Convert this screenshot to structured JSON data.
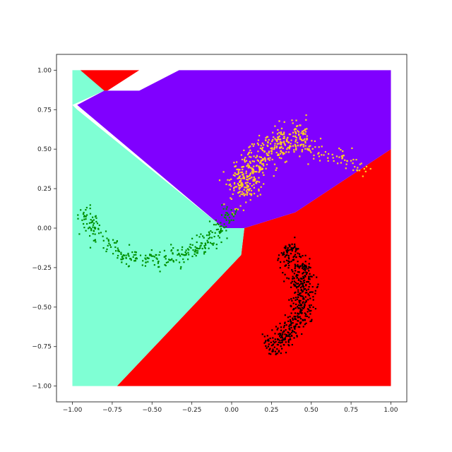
{
  "chart_data": {
    "type": "scatter",
    "title": "",
    "xlabel": "",
    "ylabel": "",
    "xlim": [
      -1.1,
      1.1
    ],
    "ylim": [
      -1.1,
      1.1
    ],
    "grid": false,
    "xticks": [
      -1.0,
      -0.75,
      -0.5,
      -0.25,
      0.0,
      0.25,
      0.5,
      0.75,
      1.0
    ],
    "yticks": [
      -1.0,
      -0.75,
      -0.5,
      -0.25,
      0.0,
      0.25,
      0.5,
      0.75,
      1.0
    ],
    "xtick_labels": [
      "−1.00",
      "−0.75",
      "−0.50",
      "−0.25",
      "0.00",
      "0.25",
      "0.50",
      "0.75",
      "1.00"
    ],
    "ytick_labels": [
      "−1.00",
      "−0.75",
      "−0.50",
      "−0.25",
      "0.00",
      "0.25",
      "0.50",
      "0.75",
      "1.00"
    ],
    "regions": [
      {
        "color": "#ff0000",
        "polygon": [
          [
            -0.95,
            1.0
          ],
          [
            -0.58,
            1.0
          ],
          [
            -0.78,
            0.87
          ],
          [
            -0.86,
            0.87
          ]
        ]
      },
      {
        "color": "#ff0000",
        "polygon": [
          [
            0.08,
            0.0
          ],
          [
            0.4,
            0.1
          ],
          [
            1.0,
            0.5
          ],
          [
            1.0,
            -1.0
          ],
          [
            -0.72,
            -1.0
          ],
          [
            0.06,
            -0.17
          ]
        ]
      },
      {
        "color": "#7fffd4",
        "polygon": [
          [
            -1.0,
            1.0
          ],
          [
            -0.95,
            1.0
          ],
          [
            -0.8,
            0.87
          ],
          [
            -1.0,
            0.78
          ]
        ]
      },
      {
        "color": "#7fffd4",
        "polygon": [
          [
            -1.0,
            0.78
          ],
          [
            -0.97,
            0.75
          ],
          [
            -0.05,
            0.0
          ],
          [
            0.08,
            0.0
          ],
          [
            0.06,
            -0.17
          ],
          [
            -0.72,
            -1.0
          ],
          [
            -1.0,
            -1.0
          ]
        ]
      },
      {
        "color": "#8000ff",
        "polygon": [
          [
            -0.97,
            0.78
          ],
          [
            -0.8,
            0.87
          ],
          [
            -0.58,
            0.87
          ],
          [
            -0.33,
            1.0
          ],
          [
            1.0,
            1.0
          ],
          [
            1.0,
            0.5
          ],
          [
            0.4,
            0.1
          ],
          [
            0.08,
            0.0
          ],
          [
            -0.05,
            0.0
          ]
        ]
      }
    ],
    "series": [
      {
        "color": "#ffd21e",
        "shape": "arc",
        "center": [
          0.5,
          0.12
        ],
        "radius": 0.46,
        "angle_start": 93,
        "angle_end": 168,
        "spread": 0.05,
        "count": 420,
        "trail_start": 155,
        "trail_end": 185,
        "trail_count": 30
      },
      {
        "color": "#ffd21e",
        "shape": "arc",
        "center": [
          0.45,
          -0.05
        ],
        "radius": 0.55,
        "angle_start": 45,
        "angle_end": 95,
        "spread": 0.04,
        "count": 70
      },
      {
        "color": "#009000",
        "shape": "arc",
        "center": [
          -0.47,
          0.3
        ],
        "radius": 0.5,
        "angle_start": 200,
        "angle_end": 340,
        "spread": 0.03,
        "count": 330
      },
      {
        "color": "#000000",
        "shape": "arc",
        "center": [
          0.05,
          -0.4
        ],
        "radius": 0.4,
        "angle_start": -65,
        "angle_end": 45,
        "spread": 0.04,
        "count": 500
      }
    ]
  }
}
